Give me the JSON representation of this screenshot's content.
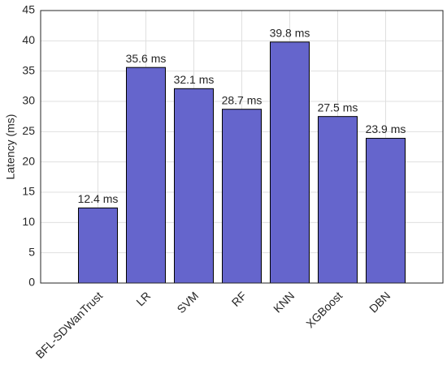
{
  "chart_data": {
    "type": "bar",
    "y_label": "Latency (ms)",
    "categories": [
      "BFL-SDWanTrust",
      "LR",
      "SVM",
      "RF",
      "KNN",
      "XGBoost",
      "DBN"
    ],
    "values": [
      12.4,
      35.6,
      32.1,
      28.7,
      39.8,
      27.5,
      23.9
    ],
    "value_labels": [
      "12.4 ms",
      "35.6 ms",
      "32.1 ms",
      "28.7 ms",
      "39.8 ms",
      "27.5 ms",
      "23.9 ms"
    ],
    "color": "#6565cc",
    "ylim": [
      0,
      45
    ],
    "yticks": [
      0,
      5,
      10,
      15,
      20,
      25,
      30,
      35,
      40,
      45
    ],
    "grid": true
  }
}
